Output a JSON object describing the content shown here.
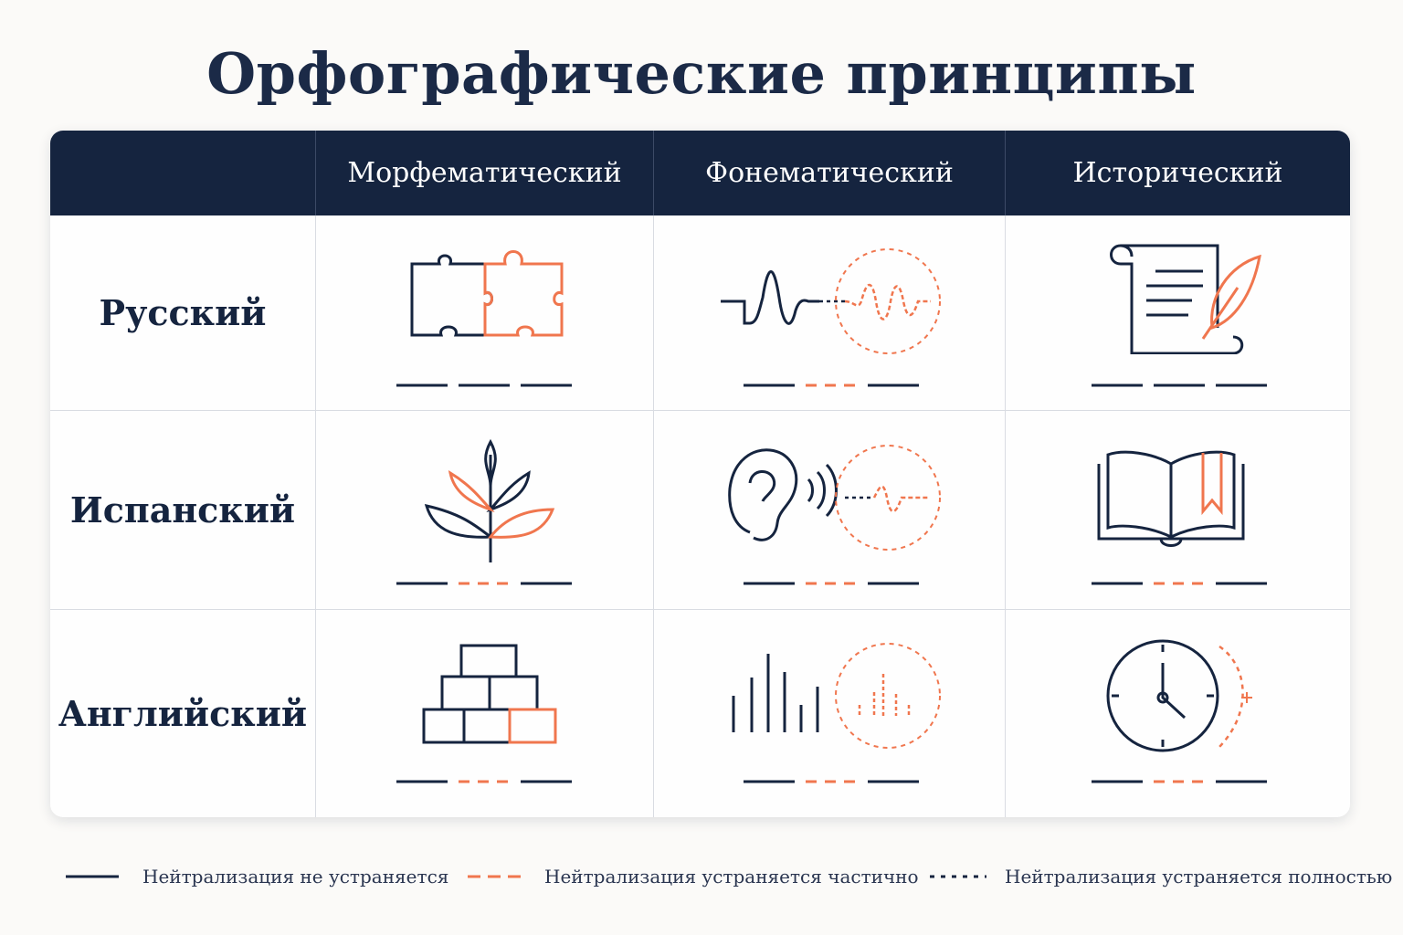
{
  "title": "Орфографические принципы",
  "columns": [
    "Морфематический",
    "Фонематический",
    "Исторический"
  ],
  "rows": [
    "Русский",
    "Испанский",
    "Английский"
  ],
  "colors": {
    "navy": "#15243f",
    "accent": "#f0764e"
  },
  "icons": {
    "Русский": [
      "puzzle-icon",
      "soundwave-icon",
      "scroll-quill-icon"
    ],
    "Испанский": [
      "sprout-icon",
      "ear-sound-icon",
      "open-book-icon"
    ],
    "Английский": [
      "blocks-pyramid-icon",
      "sound-bars-icon",
      "clock-icon"
    ]
  },
  "cell_markers": [
    [
      [
        "solid",
        "solid",
        "solid"
      ],
      [
        "solid",
        "dashed",
        "solid"
      ],
      [
        "solid",
        "solid",
        "solid"
      ]
    ],
    [
      [
        "solid",
        "dashed",
        "solid"
      ],
      [
        "solid",
        "dashed",
        "solid"
      ],
      [
        "solid",
        "dashed",
        "solid"
      ]
    ],
    [
      [
        "solid",
        "dashed",
        "solid"
      ],
      [
        "solid",
        "dashed",
        "solid"
      ],
      [
        "solid",
        "dashed",
        "solid"
      ]
    ]
  ],
  "legend": [
    {
      "style": "solid",
      "label": "Нейтрализация не устраняется"
    },
    {
      "style": "dashed",
      "label": "Нейтрализация устраняется частично"
    },
    {
      "style": "dotted",
      "label": "Нейтрализация устраняется полностью"
    }
  ]
}
